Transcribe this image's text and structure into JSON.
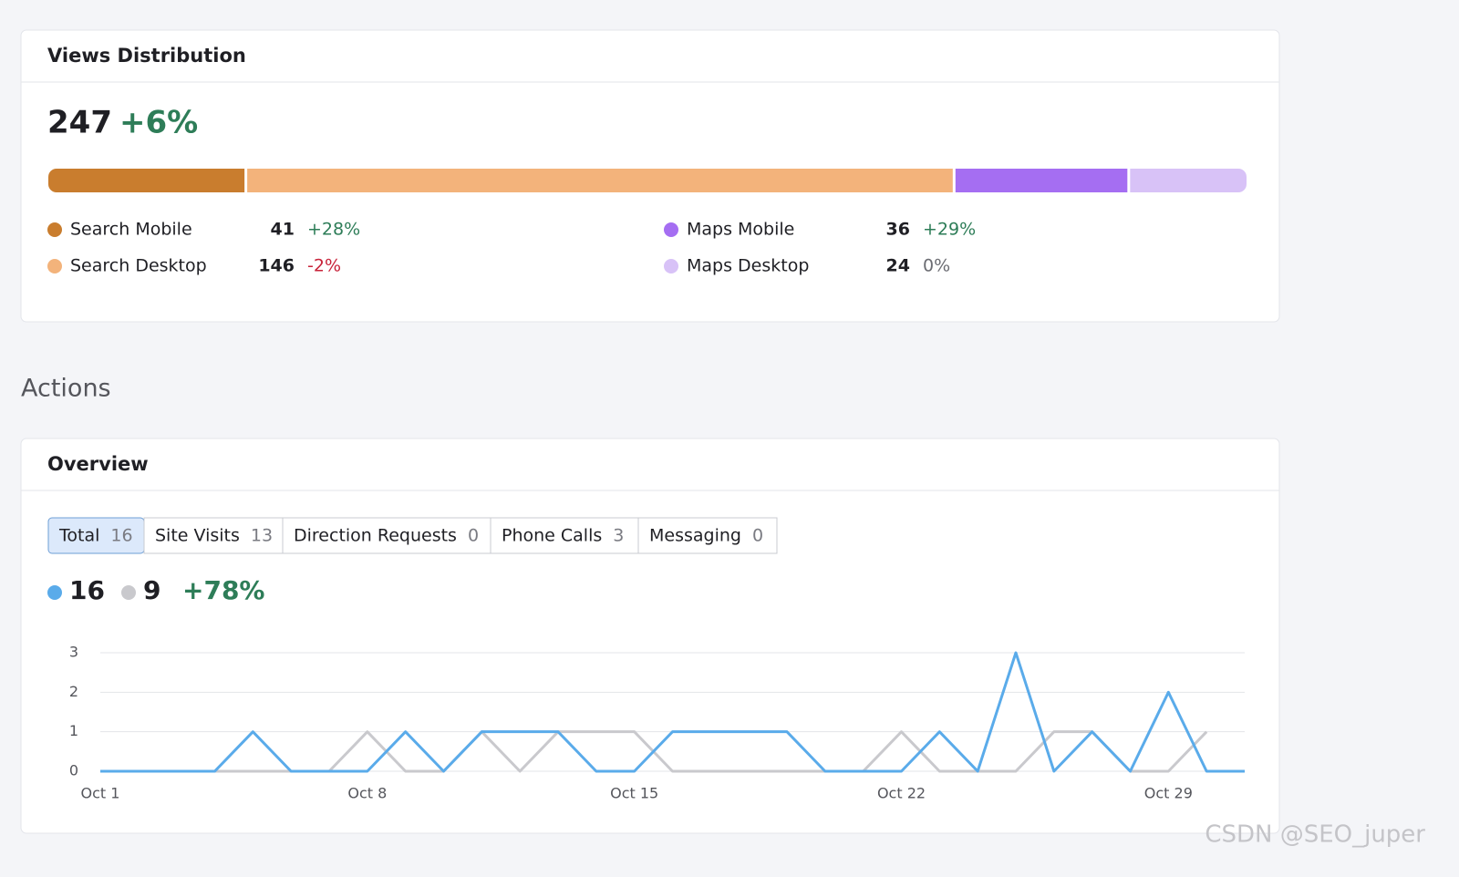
{
  "views_distribution": {
    "title": "Views Distribution",
    "total": 247,
    "change": "+6%",
    "segments": [
      {
        "name": "Search Mobile",
        "value": 41,
        "change": "+28%",
        "color": "#c97d2e"
      },
      {
        "name": "Search Desktop",
        "value": 146,
        "change": "-2%",
        "color": "#f3b37b"
      },
      {
        "name": "Maps Mobile",
        "value": 36,
        "change": "+29%",
        "color": "#a56ef2"
      },
      {
        "name": "Maps Desktop",
        "value": 24,
        "change": "0%",
        "color": "#d8c2f7"
      }
    ]
  },
  "actions_heading": "Actions",
  "overview": {
    "title": "Overview",
    "tabs": [
      {
        "label": "Total",
        "count": 16
      },
      {
        "label": "Site Visits",
        "count": 13
      },
      {
        "label": "Direction Requests",
        "count": 0
      },
      {
        "label": "Phone Calls",
        "count": 3
      },
      {
        "label": "Messaging",
        "count": 0
      }
    ],
    "current": 16,
    "previous": 9,
    "change": "+78%"
  },
  "chart_data": {
    "type": "line",
    "categories": [
      "Oct 1",
      null,
      null,
      null,
      null,
      null,
      null,
      "Oct 8",
      null,
      null,
      null,
      null,
      null,
      null,
      "Oct 15",
      null,
      null,
      null,
      null,
      null,
      null,
      "Oct 22",
      null,
      null,
      null,
      null,
      null,
      null,
      "Oct 29",
      null,
      null
    ],
    "series": [
      {
        "color": "#5aabea",
        "values": [
          0,
          0,
          0,
          0,
          1,
          0,
          0,
          0,
          1,
          0,
          1,
          1,
          1,
          0,
          0,
          1,
          1,
          1,
          1,
          0,
          0,
          0,
          1,
          0,
          3,
          0,
          1,
          0,
          2,
          0,
          0
        ]
      },
      {
        "color": "#c9c9cd",
        "values": [
          0,
          0,
          0,
          0,
          0,
          0,
          0,
          1,
          0,
          0,
          1,
          0,
          1,
          1,
          1,
          0,
          0,
          0,
          0,
          0,
          0,
          1,
          0,
          0,
          0,
          1,
          1,
          0,
          0,
          1,
          null
        ]
      }
    ],
    "ylim": [
      0,
      3
    ],
    "yticks": [
      0,
      1,
      2,
      3
    ],
    "grid": true
  },
  "watermark": "CSDN @SEO_juper"
}
